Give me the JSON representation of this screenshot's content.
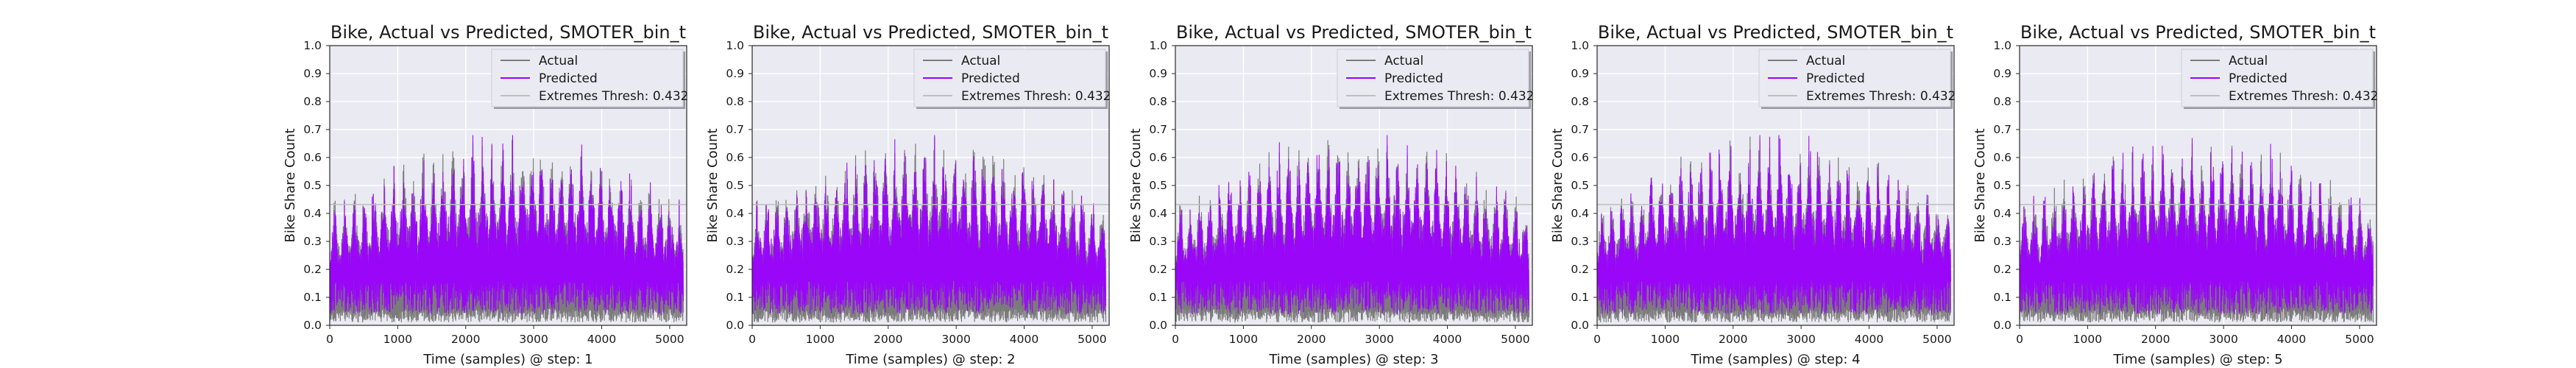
{
  "chart_data": [
    {
      "type": "line",
      "title": "Bike, Actual vs Predicted, SMOTER_bin_t",
      "xlabel": "Time (samples) @ step: 1",
      "ylabel": "Bike Share Count",
      "xlim": [
        0,
        5250
      ],
      "ylim": [
        0,
        1.0
      ],
      "xticks": [
        0,
        1000,
        2000,
        3000,
        4000,
        5000
      ],
      "yticks": [
        0.0,
        0.1,
        0.2,
        0.3,
        0.4,
        0.5,
        0.6,
        0.7,
        0.8,
        0.9,
        1.0
      ],
      "series": [
        {
          "name": "Actual",
          "color": "#7b7b7b"
        },
        {
          "name": "Predicted",
          "color": "#9b00ff"
        },
        {
          "name": "Extremes Thresh: 0.432",
          "color": "#bfbfbf",
          "value": 0.432
        }
      ],
      "legend_position": "top-right",
      "grid": true
    },
    {
      "type": "line",
      "title": "Bike, Actual vs Predicted, SMOTER_bin_t",
      "xlabel": "Time (samples) @ step: 2",
      "ylabel": "Bike Share Count",
      "xlim": [
        0,
        5250
      ],
      "ylim": [
        0,
        1.0
      ],
      "xticks": [
        0,
        1000,
        2000,
        3000,
        4000,
        5000
      ],
      "yticks": [
        0.0,
        0.1,
        0.2,
        0.3,
        0.4,
        0.5,
        0.6,
        0.7,
        0.8,
        0.9,
        1.0
      ],
      "series": [
        {
          "name": "Actual",
          "color": "#7b7b7b"
        },
        {
          "name": "Predicted",
          "color": "#9b00ff"
        },
        {
          "name": "Extremes Thresh: 0.432",
          "color": "#bfbfbf",
          "value": 0.432
        }
      ],
      "legend_position": "top-right",
      "grid": true
    },
    {
      "type": "line",
      "title": "Bike, Actual vs Predicted, SMOTER_bin_t",
      "xlabel": "Time (samples) @ step: 3",
      "ylabel": "Bike Share Count",
      "xlim": [
        0,
        5250
      ],
      "ylim": [
        0,
        1.0
      ],
      "xticks": [
        0,
        1000,
        2000,
        3000,
        4000,
        5000
      ],
      "yticks": [
        0.0,
        0.1,
        0.2,
        0.3,
        0.4,
        0.5,
        0.6,
        0.7,
        0.8,
        0.9,
        1.0
      ],
      "series": [
        {
          "name": "Actual",
          "color": "#7b7b7b"
        },
        {
          "name": "Predicted",
          "color": "#9b00ff"
        },
        {
          "name": "Extremes Thresh: 0.432",
          "color": "#bfbfbf",
          "value": 0.432
        }
      ],
      "legend_position": "top-right",
      "grid": true
    },
    {
      "type": "line",
      "title": "Bike, Actual vs Predicted, SMOTER_bin_t",
      "xlabel": "Time (samples) @ step: 4",
      "ylabel": "Bike Share Count",
      "xlim": [
        0,
        5250
      ],
      "ylim": [
        0,
        1.0
      ],
      "xticks": [
        0,
        1000,
        2000,
        3000,
        4000,
        5000
      ],
      "yticks": [
        0.0,
        0.1,
        0.2,
        0.3,
        0.4,
        0.5,
        0.6,
        0.7,
        0.8,
        0.9,
        1.0
      ],
      "series": [
        {
          "name": "Actual",
          "color": "#7b7b7b"
        },
        {
          "name": "Predicted",
          "color": "#9b00ff"
        },
        {
          "name": "Extremes Thresh: 0.432",
          "color": "#bfbfbf",
          "value": 0.432
        }
      ],
      "legend_position": "top-right",
      "grid": true
    },
    {
      "type": "line",
      "title": "Bike, Actual vs Predicted, SMOTER_bin_t",
      "xlabel": "Time (samples) @ step: 5",
      "ylabel": "Bike Share Count",
      "xlim": [
        0,
        5250
      ],
      "ylim": [
        0,
        1.0
      ],
      "xticks": [
        0,
        1000,
        2000,
        3000,
        4000,
        5000
      ],
      "yticks": [
        0.0,
        0.1,
        0.2,
        0.3,
        0.4,
        0.5,
        0.6,
        0.7,
        0.8,
        0.9,
        1.0
      ],
      "series": [
        {
          "name": "Actual",
          "color": "#7b7b7b"
        },
        {
          "name": "Predicted",
          "color": "#9b00ff"
        },
        {
          "name": "Extremes Thresh: 0.432",
          "color": "#bfbfbf",
          "value": 0.432
        }
      ],
      "legend_position": "top-right",
      "grid": true
    }
  ]
}
